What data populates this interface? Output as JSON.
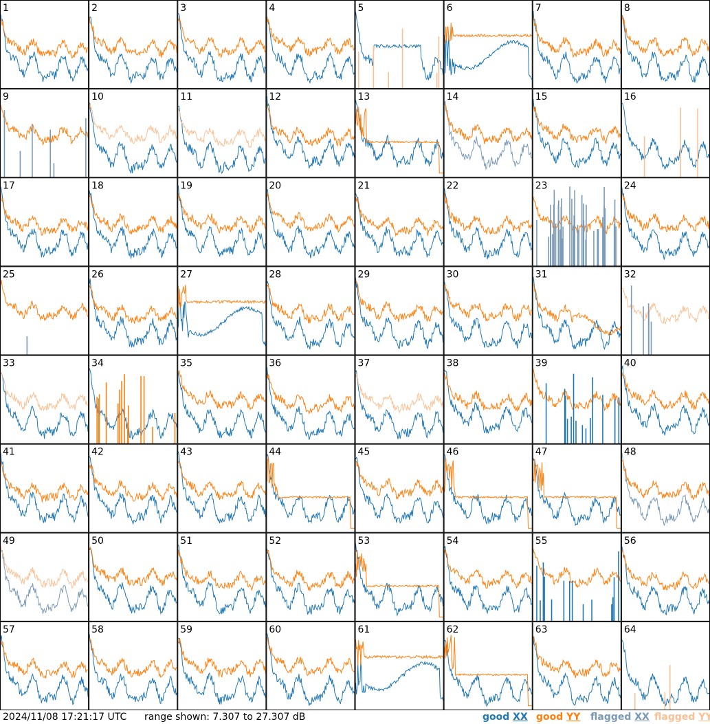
{
  "chart_data": {
    "type": "line",
    "panel_count": 64,
    "panel_labels": [
      "1",
      "2",
      "3",
      "4",
      "5",
      "6",
      "7",
      "8",
      "9",
      "10",
      "11",
      "12",
      "13",
      "14",
      "15",
      "16",
      "17",
      "18",
      "19",
      "20",
      "21",
      "22",
      "23",
      "24",
      "25",
      "26",
      "27",
      "28",
      "29",
      "30",
      "31",
      "32",
      "33",
      "34",
      "35",
      "36",
      "37",
      "38",
      "39",
      "40",
      "41",
      "42",
      "43",
      "44",
      "45",
      "46",
      "47",
      "48",
      "49",
      "50",
      "51",
      "52",
      "53",
      "54",
      "55",
      "56",
      "57",
      "58",
      "59",
      "60",
      "61",
      "62",
      "63",
      "64"
    ],
    "ylim": [
      7.307,
      27.307
    ],
    "yunit": "dB",
    "series": [
      {
        "name": "good XX",
        "color": "#1f77b4"
      },
      {
        "name": "good YY",
        "color": "#ff7f0e"
      },
      {
        "name": "flagged XX",
        "color": "#7a9ab8"
      },
      {
        "name": "flagged YY",
        "color": "#f9c195"
      }
    ],
    "panel_modes": {
      "1": "ends-only",
      "5": "yy-flagged-spikes,xx-flat",
      "6": "xx-dip,yy-flat",
      "9": "xx-flagged-spikes",
      "10": "yy-flagged",
      "11": "yy-flagged",
      "13": "yy-flat-drop",
      "14": "xx-flagged",
      "16": "yy-flagged-spikes",
      "23": "xx-flagged-noise",
      "25": "xx-spike-single",
      "27": "xx-dip,yy-flat",
      "31": "yy-dip",
      "32": "yy-flagged-noisy,xx-flagged-spikes",
      "33": "yy-flagged",
      "34": "yy-good-spikes",
      "37": "yy-flagged",
      "39": "xx-good-spikes",
      "44": "yy-flat-drop",
      "45": "mixed",
      "46": "yy-flat-drop",
      "47": "yy-flat-drop",
      "48": "xx-flagged",
      "49": "both-flagged",
      "53": "yy-flat-drop",
      "55": "xx-good-spikes",
      "61": "xx-dip,yy-flat",
      "62": "yy-flat-drop",
      "64": "yy-flagged-spikes"
    }
  },
  "footer": {
    "timestamp": "2024/11/08 17:21:17 UTC",
    "range_text": "range shown: 7.307 to 27.307 dB"
  },
  "legend": {
    "good_label": "good",
    "flagged_label": "flagged",
    "xx_label": "XX",
    "yy_label": "YY",
    "colors": {
      "good_xx": "#1f77b4",
      "good_yy": "#ff7f0e",
      "flagged_xx": "#7a9ab8",
      "flagged_yy": "#f9c195"
    }
  }
}
